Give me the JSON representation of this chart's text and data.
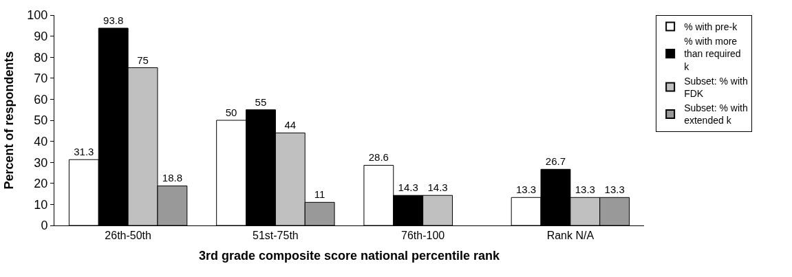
{
  "chart_data": {
    "type": "bar",
    "xlabel": "3rd grade composite score national percentile rank",
    "ylabel": "Percent of respondents",
    "categories": [
      "26th-50th",
      "51st-75th",
      "76th-100",
      "Rank N/A"
    ],
    "series": [
      {
        "name": "% with pre-k",
        "color": "#ffffff",
        "values": [
          31.3,
          50,
          28.6,
          13.3
        ],
        "value_labels": [
          "31.3",
          "50",
          "28.6",
          "13.3"
        ]
      },
      {
        "name": "% with more than required k",
        "color": "#000000",
        "values": [
          93.8,
          55,
          14.3,
          26.7
        ],
        "value_labels": [
          "93.8",
          "55",
          "14.3",
          "26.7"
        ]
      },
      {
        "name": "Subset: % with FDK",
        "color": "#c0c0c0",
        "values": [
          75,
          44,
          14.3,
          13.3
        ],
        "value_labels": [
          "75",
          "44",
          "14.3",
          "13.3"
        ]
      },
      {
        "name": "Subset: % with extended k",
        "color": "#999999",
        "values": [
          18.8,
          11,
          null,
          13.3
        ],
        "value_labels": [
          "18.8",
          "11",
          null,
          "13.3"
        ]
      }
    ],
    "ylim": [
      0,
      100
    ],
    "yticks": [
      0,
      10,
      20,
      30,
      40,
      50,
      60,
      70,
      80,
      90,
      100
    ],
    "legend": "right"
  }
}
